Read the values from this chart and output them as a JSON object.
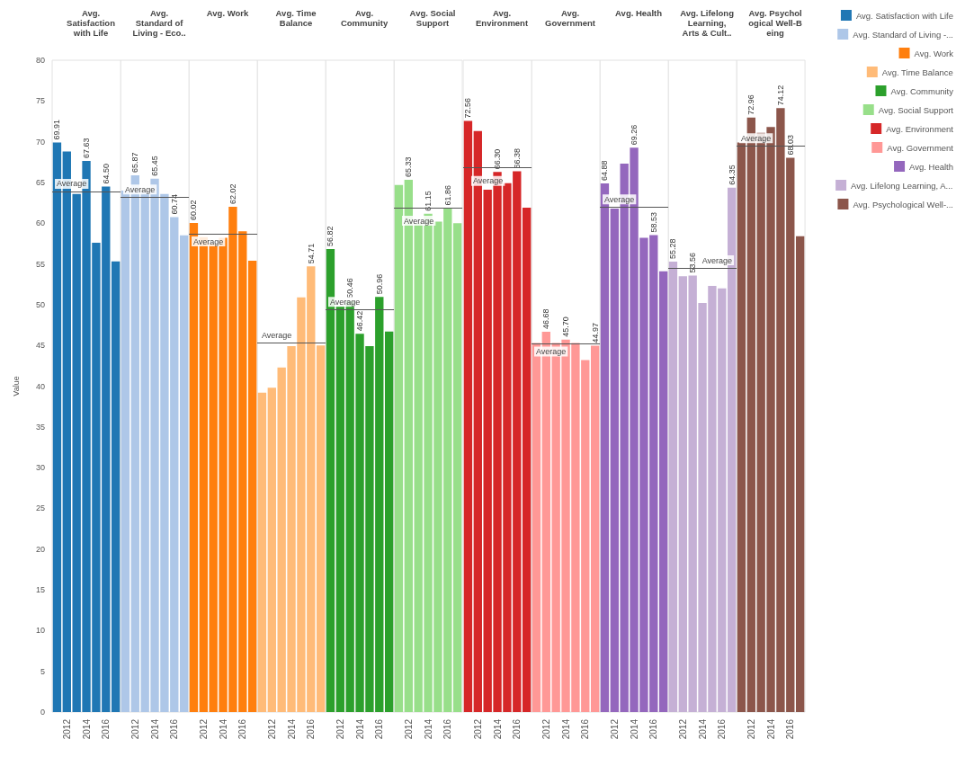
{
  "chart_data": [
    {
      "type": "bar",
      "title": "Avg.\nSatisfaction\nwith Life",
      "ylabel": "Value",
      "categories": [
        null,
        "2012",
        null,
        "2014",
        null,
        "2016",
        null
      ],
      "ylim": [
        0,
        80
      ],
      "yticks": [
        0,
        5,
        10,
        15,
        20,
        25,
        30,
        35,
        40,
        45,
        50,
        55,
        60,
        65,
        70,
        75,
        80
      ],
      "legend": "right",
      "series": [
        {
          "name": "Avg. Satisfaction with Life",
          "color": "#1f77b4",
          "values": [
            69.91,
            68.8,
            63.6,
            67.63,
            57.6,
            64.5,
            55.3
          ],
          "value_labels": [
            "69.91",
            null,
            null,
            "67.63",
            null,
            "64.50",
            null
          ]
        }
      ],
      "ref_lines": [
        {
          "axis": "y",
          "value": 63.9,
          "label": "Average"
        }
      ]
    },
    {
      "type": "bar",
      "title": "Avg.\nStandard of\nLiving - Eco..",
      "categories": [
        null,
        "2012",
        null,
        "2014",
        null,
        "2016",
        null
      ],
      "ylim": [
        0,
        80
      ],
      "yticks": [
        0,
        5,
        10,
        15,
        20,
        25,
        30,
        35,
        40,
        45,
        50,
        55,
        60,
        65,
        70,
        75,
        80
      ],
      "tick_labels": "x",
      "legend": "right",
      "series": [
        {
          "name": "Avg. Standard of Living -...",
          "color": "#aec7e8",
          "values": [
            64.0,
            65.87,
            63.8,
            65.45,
            63.6,
            60.74,
            58.5
          ],
          "value_labels": [
            null,
            "65.87",
            null,
            "65.45",
            null,
            "60.74",
            null
          ]
        }
      ],
      "ref_lines": [
        {
          "axis": "y",
          "value": 63.2,
          "label": "Average"
        }
      ]
    },
    {
      "type": "bar",
      "title": "Avg. Work",
      "categories": [
        null,
        "2012",
        null,
        "2014",
        null,
        "2016",
        null
      ],
      "ylim": [
        0,
        80
      ],
      "yticks": [
        0,
        5,
        10,
        15,
        20,
        25,
        30,
        35,
        40,
        45,
        50,
        55,
        60,
        65,
        70,
        75,
        80
      ],
      "tick_labels": "x",
      "legend": "right",
      "series": [
        {
          "name": "Avg. Work",
          "color": "#ff7f0e",
          "values": [
            60.02,
            58.3,
            57.5,
            58.2,
            62.02,
            59.0,
            55.4
          ],
          "value_labels": [
            "60.02",
            null,
            null,
            null,
            "62.02",
            null,
            null
          ]
        }
      ],
      "ref_lines": [
        {
          "axis": "y",
          "value": 58.7,
          "label": "Average"
        }
      ]
    },
    {
      "type": "bar",
      "title": "Avg. Time\nBalance",
      "categories": [
        null,
        "2012",
        null,
        "2014",
        null,
        "2016",
        null
      ],
      "ylim": [
        0,
        80
      ],
      "yticks": [
        0,
        5,
        10,
        15,
        20,
        25,
        30,
        35,
        40,
        45,
        50,
        55,
        60,
        65,
        70,
        75,
        80
      ],
      "tick_labels": "x",
      "legend": "right",
      "series": [
        {
          "name": "Avg. Time Balance",
          "color": "#ffbb78",
          "values": [
            39.2,
            39.8,
            42.3,
            44.9,
            50.9,
            54.71,
            45.0
          ],
          "value_labels": [
            null,
            null,
            null,
            null,
            null,
            "54.71",
            null
          ]
        }
      ],
      "ref_lines": [
        {
          "axis": "y",
          "value": 45.3,
          "label": "Average"
        }
      ]
    },
    {
      "type": "bar",
      "title": "Avg.\nCommunity",
      "categories": [
        null,
        "2012",
        null,
        "2014",
        null,
        "2016",
        null
      ],
      "ylim": [
        0,
        80
      ],
      "yticks": [
        0,
        5,
        10,
        15,
        20,
        25,
        30,
        35,
        40,
        45,
        50,
        55,
        60,
        65,
        70,
        75,
        80
      ],
      "tick_labels": "x",
      "legend": "right",
      "series": [
        {
          "name": "Avg. Community",
          "color": "#2ca02c",
          "values": [
            56.82,
            49.8,
            50.46,
            46.42,
            44.9,
            50.96,
            46.7
          ],
          "value_labels": [
            "56.82",
            null,
            "50.46",
            "46.42",
            null,
            "50.96",
            null
          ]
        }
      ],
      "ref_lines": [
        {
          "axis": "y",
          "value": 49.4,
          "label": "Average"
        }
      ]
    },
    {
      "type": "bar",
      "title": "Avg. Social\nSupport",
      "categories": [
        null,
        "2012",
        null,
        "2014",
        null,
        "2016",
        null
      ],
      "ylim": [
        0,
        80
      ],
      "yticks": [
        0,
        5,
        10,
        15,
        20,
        25,
        30,
        35,
        40,
        45,
        50,
        55,
        60,
        65,
        70,
        75,
        80
      ],
      "tick_labels": "x",
      "legend": "right",
      "series": [
        {
          "name": "Avg. Social Support",
          "color": "#98df8a",
          "values": [
            64.7,
            65.33,
            60.0,
            61.15,
            60.2,
            61.86,
            60.0
          ],
          "value_labels": [
            null,
            "65.33",
            null,
            "61.15",
            null,
            "61.86",
            null
          ]
        }
      ],
      "ref_lines": [
        {
          "axis": "y",
          "value": 61.9,
          "label": "Average"
        }
      ]
    },
    {
      "type": "bar",
      "title": "Avg.\nEnvironment",
      "categories": [
        null,
        "2012",
        null,
        "2014",
        null,
        "2016",
        null
      ],
      "ylim": [
        0,
        80
      ],
      "yticks": [
        0,
        5,
        10,
        15,
        20,
        25,
        30,
        35,
        40,
        45,
        50,
        55,
        60,
        65,
        70,
        75,
        80
      ],
      "tick_labels": "x",
      "legend": "right",
      "series": [
        {
          "name": "Avg. Environment",
          "color": "#d62728",
          "values": [
            72.56,
            71.3,
            64.1,
            66.3,
            64.9,
            66.38,
            61.9
          ],
          "value_labels": [
            "72.56",
            null,
            null,
            "66.30",
            null,
            "66.38",
            null
          ]
        }
      ],
      "ref_lines": [
        {
          "axis": "y",
          "value": 66.8,
          "label": "Average"
        }
      ]
    },
    {
      "type": "bar",
      "title": "Avg.\nGovernment",
      "categories": [
        null,
        "2012",
        null,
        "2014",
        null,
        "2016",
        null
      ],
      "ylim": [
        0,
        80
      ],
      "yticks": [
        0,
        5,
        10,
        15,
        20,
        25,
        30,
        35,
        40,
        45,
        50,
        55,
        60,
        65,
        70,
        75,
        80
      ],
      "tick_labels": "x",
      "legend": "right",
      "series": [
        {
          "name": "Avg. Government",
          "color": "#ff9896",
          "values": [
            45.3,
            46.68,
            45.3,
            45.7,
            45.3,
            43.2,
            44.97
          ],
          "value_labels": [
            null,
            "46.68",
            null,
            "45.70",
            null,
            null,
            "44.97"
          ]
        }
      ],
      "ref_lines": [
        {
          "axis": "y",
          "value": 45.2,
          "label": "Average"
        }
      ]
    },
    {
      "type": "bar",
      "title": "Avg. Health",
      "categories": [
        null,
        "2012",
        null,
        "2014",
        null,
        "2016",
        null
      ],
      "ylim": [
        0,
        80
      ],
      "yticks": [
        0,
        5,
        10,
        15,
        20,
        25,
        30,
        35,
        40,
        45,
        50,
        55,
        60,
        65,
        70,
        75,
        80
      ],
      "tick_labels": "x",
      "legend": "right",
      "series": [
        {
          "name": "Avg. Health",
          "color": "#9467bd",
          "values": [
            64.88,
            61.8,
            67.3,
            69.26,
            58.2,
            58.53,
            54.1
          ],
          "value_labels": [
            "64.88",
            null,
            null,
            "69.26",
            null,
            "58.53",
            null
          ]
        }
      ],
      "ref_lines": [
        {
          "axis": "y",
          "value": 62.0,
          "label": "Average"
        }
      ]
    },
    {
      "type": "bar",
      "title": "Avg. Lifelong\nLearning,\nArts & Cult..",
      "categories": [
        null,
        "2012",
        null,
        "2014",
        null,
        "2016",
        null
      ],
      "ylim": [
        0,
        80
      ],
      "yticks": [
        0,
        5,
        10,
        15,
        20,
        25,
        30,
        35,
        40,
        45,
        50,
        55,
        60,
        65,
        70,
        75,
        80
      ],
      "tick_labels": "x",
      "legend": "right",
      "series": [
        {
          "name": "Avg. Lifelong Learning, A...",
          "color": "#c5b0d5",
          "values": [
            55.28,
            53.5,
            53.56,
            50.2,
            52.3,
            52.0,
            64.35
          ],
          "value_labels": [
            "55.28",
            null,
            "53.56",
            null,
            null,
            null,
            "64.35"
          ]
        }
      ],
      "ref_lines": [
        {
          "axis": "y",
          "value": 54.5,
          "label": "Average"
        }
      ]
    },
    {
      "type": "bar",
      "title": "Avg. Psychol\nogical Well-B\neing",
      "categories": [
        null,
        "2012",
        null,
        "2014",
        null,
        "2016",
        null
      ],
      "ylim": [
        0,
        80
      ],
      "yticks": [
        0,
        5,
        10,
        15,
        20,
        25,
        30,
        35,
        40,
        45,
        50,
        55,
        60,
        65,
        70,
        75,
        80
      ],
      "tick_labels": "x",
      "legend": "right",
      "series": [
        {
          "name": "Avg. Psychological Well-...",
          "color": "#8c564b",
          "values": [
            69.9,
            72.96,
            71.1,
            71.8,
            74.12,
            68.03,
            58.4
          ],
          "value_labels": [
            null,
            "72.96",
            null,
            null,
            "74.12",
            "68.03",
            null
          ]
        }
      ],
      "ref_lines": [
        {
          "axis": "y",
          "value": 69.5,
          "label": "Average"
        }
      ]
    }
  ]
}
